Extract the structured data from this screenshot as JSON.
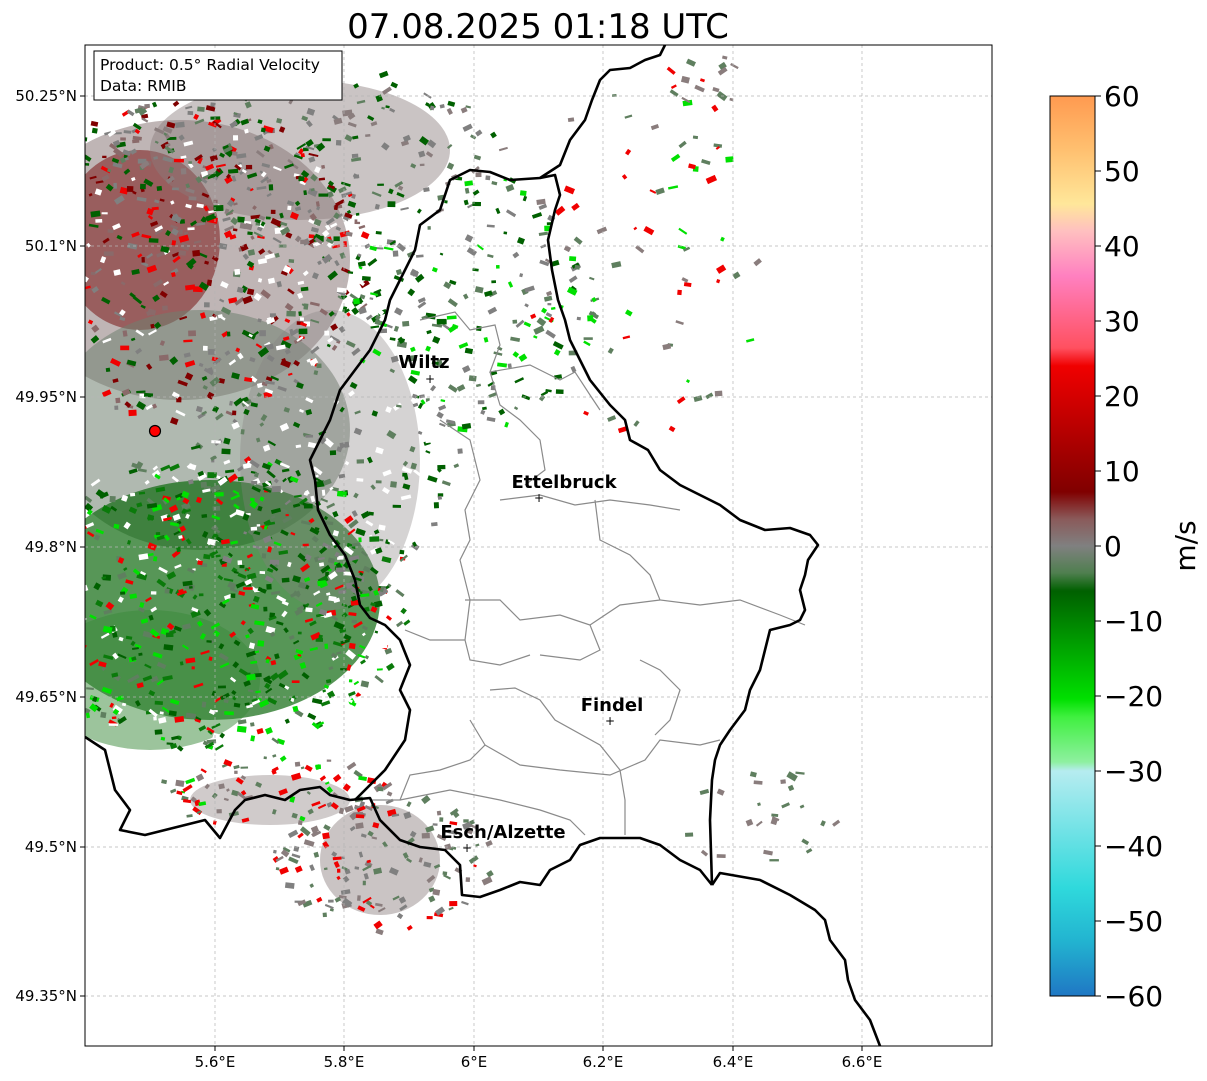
{
  "title": "07.08.2025 01:18 UTC",
  "info_box": {
    "line1": "Product: 0.5° Radial Velocity",
    "line2": "Data: RMIB"
  },
  "axes": {
    "lat_ticks": [
      "50.25°N",
      "50.1°N",
      "49.95°N",
      "49.8°N",
      "49.65°N",
      "49.5°N",
      "49.35°N"
    ],
    "lon_ticks": [
      "5.6°E",
      "5.8°E",
      "6°E",
      "6.2°E",
      "6.4°E",
      "6.6°E"
    ]
  },
  "cities": [
    {
      "name": "Wiltz"
    },
    {
      "name": "Ettelbruck"
    },
    {
      "name": "Findel"
    },
    {
      "name": "Esch/Alzette"
    }
  ],
  "colorbar": {
    "label": "m/s",
    "ticks": [
      "60",
      "50",
      "40",
      "30",
      "20",
      "10",
      "0",
      "−10",
      "−20",
      "−30",
      "−40",
      "−50",
      "−60"
    ],
    "min": -60,
    "max": 60,
    "colors": {
      "neg_blue": "#1f77c4",
      "neg_cyan": "#2fd9dc",
      "neg_lightcyan": "#b6ecf0",
      "neg_lightgreen": "#8ef0a0",
      "neg_green": "#00e000",
      "neg_darkgreen": "#006000",
      "zero_grey": "#808080",
      "pos_darkred": "#800000",
      "pos_red": "#f00000",
      "pos_pink": "#ff80c0",
      "pos_cream": "#ffe79a",
      "pos_orange": "#ff9a50"
    }
  },
  "radar_site_color": "#ff0000"
}
